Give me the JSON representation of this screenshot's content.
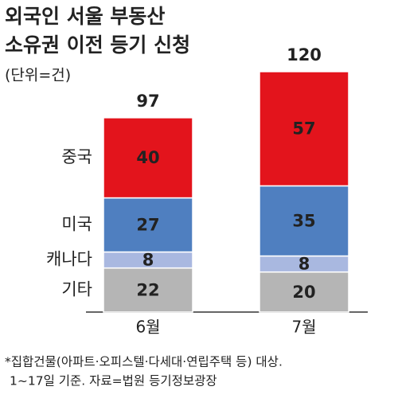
{
  "chart_data": {
    "type": "stacked-bar",
    "title": [
      "외국인 서울 부동산",
      "소유권 이전 등기 신청"
    ],
    "subtitle": "(단위=건)",
    "categories": [
      "6월",
      "7월"
    ],
    "series": [
      {
        "name": "기타",
        "color": "#b5b5b5",
        "values": [
          22,
          20
        ]
      },
      {
        "name": "캐나다",
        "color": "#a9b8e0",
        "values": [
          8,
          8
        ]
      },
      {
        "name": "미국",
        "color": "#4f7fc0",
        "values": [
          27,
          35
        ]
      },
      {
        "name": "중국",
        "color": "#e3141c",
        "values": [
          40,
          57
        ]
      }
    ],
    "totals": [
      97,
      120
    ],
    "footnote": [
      "*집합건물(아파트·오피스텔·다세대·연립주택 등) 대상.",
      "1~17일 기준. 자료=법원 등기정보광장"
    ]
  }
}
